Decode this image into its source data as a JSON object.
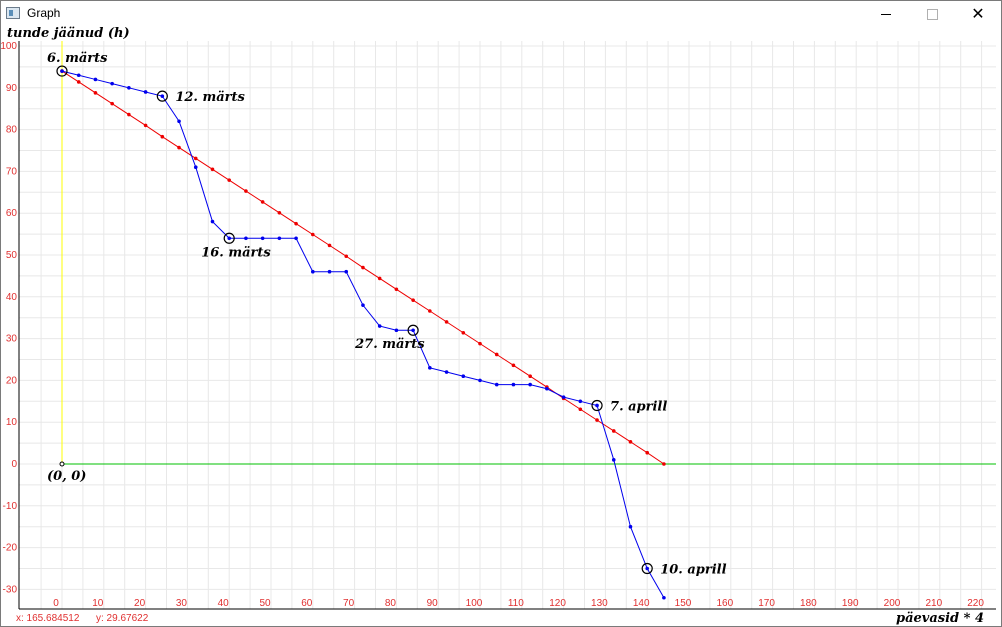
{
  "window": {
    "title": "Graph",
    "buttons": {
      "minimize": "minimize-icon",
      "maximize": "maximize-icon",
      "close": "close-icon"
    }
  },
  "status": {
    "x": "x: 165.684512",
    "y": "y: 29.67622"
  },
  "chart_data": {
    "type": "line",
    "xlabel": "päevasid * 4",
    "ylabel": "tunde jäänud (h)",
    "xlim": [
      -4,
      224
    ],
    "ylim": [
      -32,
      101
    ],
    "xticks": [
      0,
      10,
      20,
      30,
      40,
      50,
      60,
      70,
      80,
      90,
      100,
      110,
      120,
      130,
      140,
      150,
      160,
      170,
      180,
      190,
      200,
      210,
      220
    ],
    "yticks": [
      -30,
      -20,
      -10,
      0,
      10,
      20,
      30,
      40,
      50,
      60,
      70,
      80,
      90,
      100
    ],
    "grid": true,
    "colors": {
      "actual": "#0000ee",
      "ideal": "#ee0000",
      "zero_line": "#00c000",
      "y_axis": "#ffff00",
      "tick_labels": "#e03030",
      "grid": "#e8e8e8"
    },
    "origin_label": "(0, 0)",
    "series": [
      {
        "color": "#0000ee",
        "x": [
          0,
          4,
          8,
          12,
          16,
          20,
          24,
          28,
          32,
          36,
          40,
          44,
          48,
          52,
          56,
          60,
          64,
          68,
          72,
          76,
          80,
          84,
          88,
          92,
          96,
          100,
          104,
          108,
          112,
          116,
          120,
          124,
          128,
          132,
          136,
          140,
          144
        ],
        "y": [
          94,
          93,
          92,
          91,
          90,
          89,
          88,
          82,
          71,
          58,
          54,
          54,
          54,
          54,
          54,
          46,
          46,
          46,
          38,
          33,
          32,
          32,
          23,
          22,
          21,
          20,
          19,
          19,
          19,
          18,
          16,
          15,
          14,
          1,
          -15,
          -25,
          -32
        ]
      },
      {
        "color": "#ee0000",
        "x": [
          0,
          4,
          8,
          12,
          16,
          20,
          24,
          28,
          32,
          36,
          40,
          44,
          48,
          52,
          56,
          60,
          64,
          68,
          72,
          76,
          80,
          84,
          88,
          92,
          96,
          100,
          104,
          108,
          112,
          116,
          120,
          124,
          128,
          132,
          136,
          140,
          144
        ],
        "y": [
          94,
          91.4,
          88.8,
          86.2,
          83.6,
          81.0,
          78.3,
          75.7,
          73.1,
          70.5,
          67.9,
          65.3,
          62.7,
          60.1,
          57.5,
          54.9,
          52.3,
          49.7,
          47.0,
          44.4,
          41.8,
          39.2,
          36.6,
          34.0,
          31.4,
          28.8,
          26.2,
          23.6,
          21.0,
          18.4,
          15.7,
          13.1,
          10.5,
          7.9,
          5.3,
          2.7,
          0
        ]
      }
    ],
    "annotations": [
      {
        "label": "6. märts",
        "x": 0,
        "y": 94,
        "text_pos": "above-left"
      },
      {
        "label": "12. märts",
        "x": 24,
        "y": 88,
        "text_pos": "right"
      },
      {
        "label": "16. märts",
        "x": 40,
        "y": 54,
        "text_pos": "below"
      },
      {
        "label": "27. märts",
        "x": 84,
        "y": 32,
        "text_pos": "below-left"
      },
      {
        "label": "7. aprill",
        "x": 128,
        "y": 14,
        "text_pos": "right"
      },
      {
        "label": "10. aprill",
        "x": 140,
        "y": -25,
        "text_pos": "right"
      }
    ]
  }
}
